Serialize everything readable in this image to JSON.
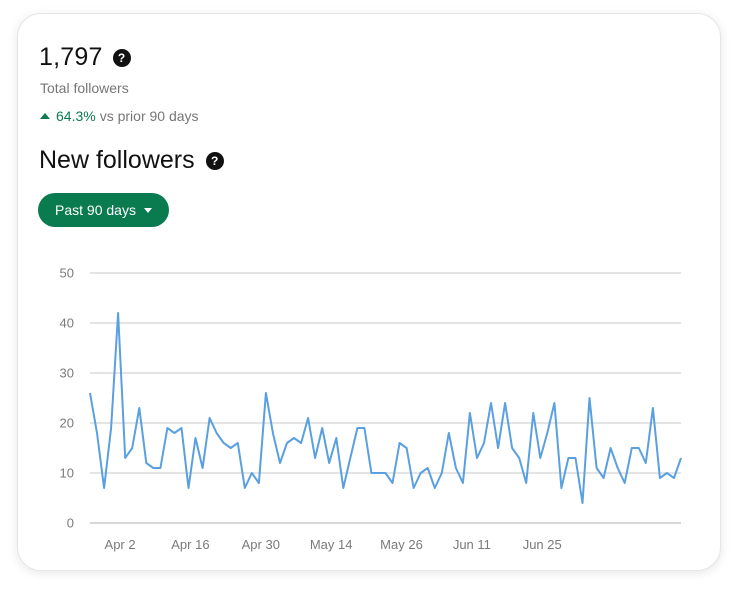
{
  "summary": {
    "total_value": "1,797",
    "total_label": "Total followers",
    "change_pct": "64.3%",
    "change_label": "vs prior 90 days",
    "help_icon": "?"
  },
  "section": {
    "title": "New followers",
    "help_icon": "?"
  },
  "range_button": {
    "label": "Past 90 days"
  },
  "colors": {
    "accent": "#0a7a4f",
    "line": "#5aa0e0",
    "grid": "#d4d4d4"
  },
  "chart_data": {
    "type": "line",
    "title": "",
    "xlabel": "",
    "ylabel": "",
    "ylim": [
      0,
      50
    ],
    "yticks": [
      0,
      10,
      20,
      30,
      40,
      50
    ],
    "xticks": [
      {
        "label": "Apr 2",
        "index": 2
      },
      {
        "label": "Apr 16",
        "index": 12
      },
      {
        "label": "Apr 30",
        "index": 22
      },
      {
        "label": "May 14",
        "index": 32
      },
      {
        "label": "May 26",
        "index": 42
      },
      {
        "label": "Jun 11",
        "index": 52
      },
      {
        "label": "Jun 25",
        "index": 62
      }
    ],
    "grid": true,
    "series": [
      {
        "values": [
          26,
          18,
          7,
          19,
          42,
          13,
          15,
          23,
          12,
          11,
          11,
          19,
          18,
          19,
          7,
          17,
          11,
          21,
          18,
          16,
          15,
          16,
          7,
          10,
          8,
          26,
          18,
          12,
          16,
          17,
          16,
          21,
          13,
          19,
          12,
          17,
          7,
          13,
          19,
          19,
          10,
          10,
          10,
          8,
          16,
          15,
          7,
          10,
          11,
          7,
          10,
          18,
          11,
          8,
          22,
          13,
          16,
          24,
          15,
          24,
          15,
          13,
          8,
          22,
          13,
          18,
          24,
          7,
          13,
          13,
          4,
          25,
          11,
          9,
          15,
          11,
          8,
          15,
          15,
          12,
          23,
          9,
          10,
          9,
          13
        ]
      }
    ]
  }
}
